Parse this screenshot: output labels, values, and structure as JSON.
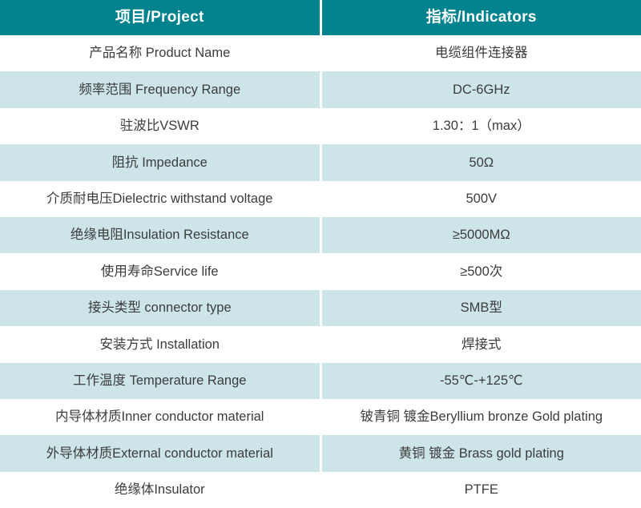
{
  "table": {
    "header": {
      "project": "项目/Project",
      "indicator": "指标/Indicators"
    },
    "rows": [
      {
        "project": "产品名称 Product Name",
        "indicator": "电缆组件连接器"
      },
      {
        "project": "频率范围 Frequency Range",
        "indicator": "DC-6GHz"
      },
      {
        "project": "驻波比VSWR",
        "indicator": "1.30：1（max）"
      },
      {
        "project": "阻抗 Impedance",
        "indicator": "50Ω"
      },
      {
        "project": "介质耐电压Dielectric withstand voltage",
        "indicator": "500V"
      },
      {
        "project": "绝缘电阻Insulation Resistance",
        "indicator": "≥5000MΩ"
      },
      {
        "project": "使用寿命Service life",
        "indicator": "≥500次"
      },
      {
        "project": "接头类型 connector type",
        "indicator": "SMB型"
      },
      {
        "project": "安装方式 Installation",
        "indicator": "焊接式"
      },
      {
        "project": "工作温度 Temperature Range",
        "indicator": "-55℃-+125℃"
      },
      {
        "project": "内导体材质Inner conductor material",
        "indicator": "铍青铜 镀金Beryllium bronze Gold plating"
      },
      {
        "project": "外导体材质External conductor material",
        "indicator": "黄铜 镀金 Brass gold plating"
      },
      {
        "project": "绝缘体Insulator",
        "indicator": "PTFE"
      }
    ],
    "colors": {
      "header_bg": "#00828F",
      "header_text": "#FFFFFF",
      "alt_row_bg": "#CDE5E9",
      "body_text": "#3C3C3C",
      "divider": "#FFFFFF"
    }
  }
}
